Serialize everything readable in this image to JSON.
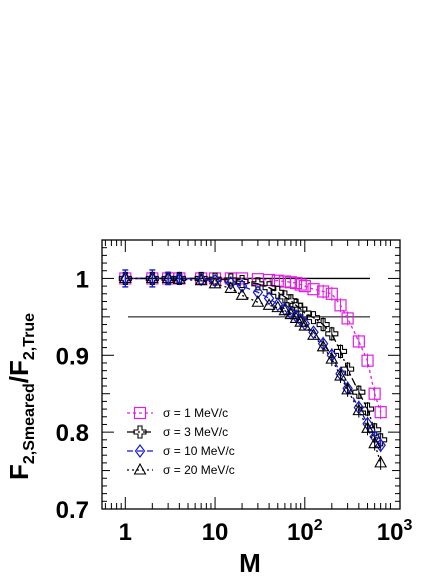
{
  "chart_data": {
    "type": "line",
    "xscale": "log",
    "xlim": [
      0.55,
      1150
    ],
    "ylim": [
      0.7,
      1.05
    ],
    "xlabel": "M",
    "ylabel_main": "F",
    "ylabel_sub1": "2,Smeared",
    "ylabel_slash": "/F",
    "ylabel_sub2": "2,True",
    "x_ticks": [
      {
        "value": 1,
        "label": "1"
      },
      {
        "value": 10,
        "label": "10"
      },
      {
        "value": 100,
        "label": "10",
        "exp": "2"
      },
      {
        "value": 1000,
        "label": "10",
        "exp": "3"
      }
    ],
    "y_ticks": [
      {
        "value": 0.7,
        "label": "0.7"
      },
      {
        "value": 0.8,
        "label": "0.8"
      },
      {
        "value": 0.9,
        "label": "0.9"
      },
      {
        "value": 1.0,
        "label": "1"
      }
    ],
    "reference_lines": [
      1.0,
      0.95
    ],
    "legend_position": "bottom-left",
    "series": [
      {
        "name": "σ = 1 MeV/c",
        "color": "#e020e0",
        "marker": "square",
        "x": [
          1,
          2,
          3,
          4,
          7,
          10,
          15,
          20,
          30,
          40,
          50,
          60,
          70,
          80,
          90,
          100,
          125,
          160,
          200,
          250,
          300,
          400,
          500,
          600,
          700
        ],
        "y": [
          1.0,
          1.0,
          1.0,
          1.0,
          1.0,
          1.0,
          1.0,
          1.0,
          0.999,
          0.998,
          0.997,
          0.996,
          0.995,
          0.994,
          0.992,
          0.99,
          0.986,
          0.983,
          0.98,
          0.965,
          0.948,
          0.918,
          0.893,
          0.85,
          0.826
        ]
      },
      {
        "name": "σ = 3 MeV/c",
        "color": "#000000",
        "marker": "cross",
        "x": [
          1,
          2,
          3,
          4,
          7,
          10,
          15,
          20,
          30,
          40,
          50,
          60,
          70,
          80,
          90,
          100,
          125,
          160,
          200,
          250,
          300,
          400,
          500,
          600,
          700
        ],
        "y": [
          1.0,
          1.0,
          1.0,
          1.0,
          1.0,
          0.999,
          0.998,
          0.996,
          0.993,
          0.988,
          0.982,
          0.976,
          0.971,
          0.965,
          0.96,
          0.955,
          0.949,
          0.94,
          0.928,
          0.905,
          0.882,
          0.852,
          0.83,
          0.803,
          0.79
        ]
      },
      {
        "name": "σ = 10 MeV/c",
        "color": "#1818cc",
        "marker": "diamond",
        "x": [
          1,
          2,
          3,
          4,
          7,
          10,
          15,
          20,
          30,
          40,
          50,
          60,
          70,
          80,
          90,
          100,
          125,
          160,
          200,
          250,
          300,
          400,
          500,
          600,
          700
        ],
        "y": [
          1.0,
          1.0,
          1.0,
          1.0,
          0.999,
          0.997,
          0.994,
          0.99,
          0.982,
          0.974,
          0.966,
          0.96,
          0.955,
          0.951,
          0.946,
          0.941,
          0.93,
          0.915,
          0.9,
          0.876,
          0.857,
          0.832,
          0.811,
          0.794,
          0.783
        ]
      },
      {
        "name": "σ = 20 MeV/c",
        "color": "#000000",
        "marker": "triangle",
        "x": [
          1,
          2,
          3,
          4,
          7,
          10,
          15,
          20,
          30,
          40,
          50,
          60,
          70,
          80,
          90,
          100,
          125,
          160,
          200,
          250,
          300,
          400,
          500,
          600,
          700
        ],
        "y": [
          1.0,
          1.0,
          1.0,
          0.999,
          0.997,
          0.993,
          0.987,
          0.978,
          0.969,
          0.965,
          0.962,
          0.958,
          0.953,
          0.948,
          0.943,
          0.938,
          0.926,
          0.911,
          0.895,
          0.873,
          0.855,
          0.828,
          0.805,
          0.785,
          0.76
        ]
      }
    ],
    "error_bars": [
      {
        "x": 1,
        "y": 1.0,
        "err": 0.011
      },
      {
        "x": 2,
        "y": 1.0,
        "err": 0.011
      },
      {
        "x": 3,
        "y": 1.0,
        "err": 0.008
      },
      {
        "x": 4,
        "y": 1.0,
        "err": 0.005
      }
    ]
  }
}
